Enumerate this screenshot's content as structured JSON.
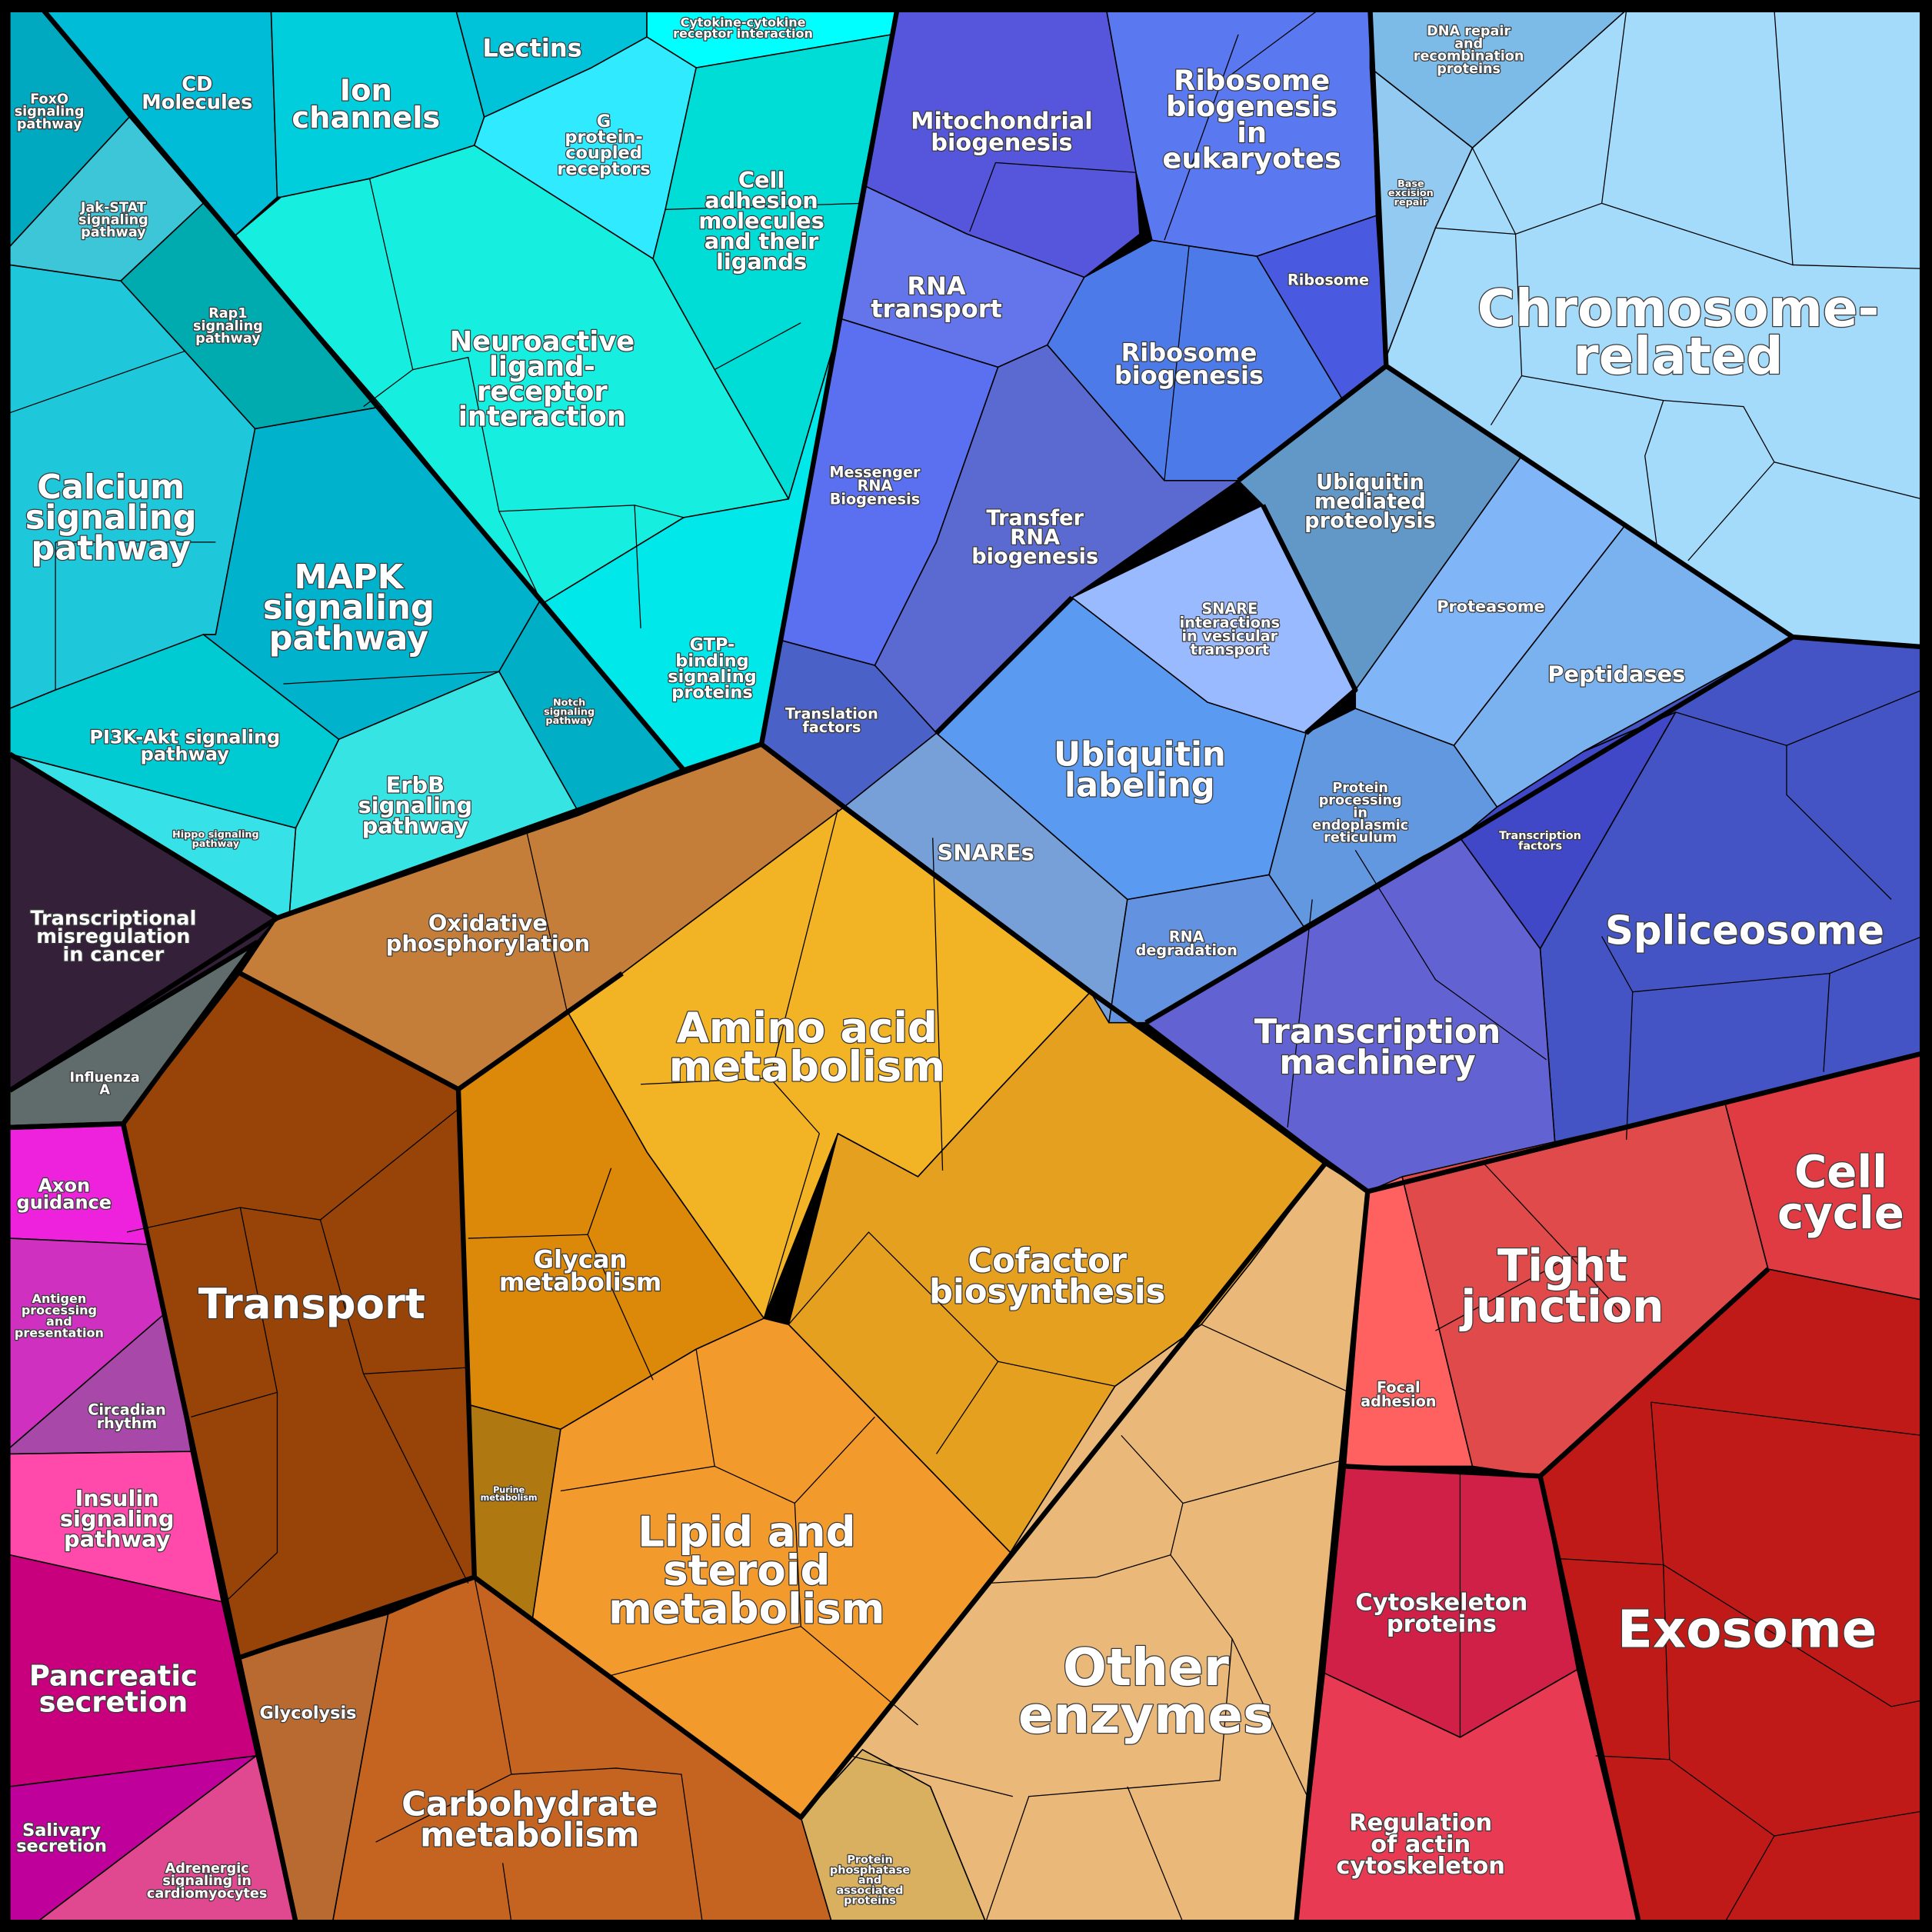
{
  "cells": [
    {
      "id": "foxo",
      "lines": [
        "FoxO",
        "signaling",
        "pathway"
      ],
      "color": "#00a8c0"
    },
    {
      "id": "jakstat",
      "lines": [
        "Jak-STAT",
        "signaling",
        "pathway"
      ],
      "color": "#3cc6d8"
    },
    {
      "id": "rap1",
      "lines": [
        "Rap1",
        "signaling",
        "pathway"
      ],
      "color": "#00abb0"
    },
    {
      "id": "calcium",
      "lines": [
        "Calcium",
        "signaling",
        "pathway"
      ],
      "color": "#1ec8da"
    },
    {
      "id": "mapk",
      "lines": [
        "MAPK",
        "signaling",
        "pathway"
      ],
      "color": "#00b2cc"
    },
    {
      "id": "notch",
      "lines": [
        "Notch",
        "signaling",
        "pathway"
      ],
      "color": "#00aec6"
    },
    {
      "id": "erbb",
      "lines": [
        "ErbB",
        "signaling",
        "pathway"
      ],
      "color": "#36e4e4"
    },
    {
      "id": "pi3k",
      "lines": [
        "PI3K-Akt signaling",
        "pathway"
      ],
      "color": "#00cad2"
    },
    {
      "id": "hippo",
      "lines": [
        "Hippo signaling",
        "pathway"
      ],
      "color": "#36e2e8"
    },
    {
      "id": "cd",
      "lines": [
        "CD",
        "Molecules"
      ],
      "color": "#00bcd6"
    },
    {
      "id": "ion",
      "lines": [
        "Ion",
        "channels"
      ],
      "color": "#00cedc"
    },
    {
      "id": "lectins",
      "lines": [
        "Lectins"
      ],
      "color": "#00c2d8"
    },
    {
      "id": "cytokine",
      "lines": [
        "Cytokine-cytokine",
        "receptor interaction"
      ],
      "color": "#00ffff"
    },
    {
      "id": "gpcr",
      "lines": [
        "G",
        "protein-",
        "coupled",
        "receptors"
      ],
      "color": "#30eaff"
    },
    {
      "id": "adhesion",
      "lines": [
        "Cell",
        "adhesion",
        "molecules",
        "and their",
        "ligands"
      ],
      "color": "#00dcd6"
    },
    {
      "id": "neuro",
      "lines": [
        "Neuroactive",
        "ligand-",
        "receptor",
        "interaction"
      ],
      "color": "#16eee0"
    },
    {
      "id": "gtp",
      "lines": [
        "GTP-",
        "binding",
        "signaling",
        "proteins"
      ],
      "color": "#00e8ea"
    },
    {
      "id": "misreg",
      "lines": [
        "Transcriptional",
        "misregulation",
        "in cancer"
      ],
      "color": "#35203a"
    },
    {
      "id": "influenza",
      "lines": [
        "Influenza",
        "A"
      ],
      "color": "#606c6c"
    },
    {
      "id": "axon",
      "lines": [
        "Axon",
        "guidance"
      ],
      "color": "#ee22dd"
    },
    {
      "id": "antigen",
      "lines": [
        "Antigen",
        "processing",
        "and",
        "presentation"
      ],
      "color": "#d030c0"
    },
    {
      "id": "circadian",
      "lines": [
        "Circadian",
        "rhythm"
      ],
      "color": "#a848a8"
    },
    {
      "id": "insulin",
      "lines": [
        "Insulin",
        "signaling",
        "pathway"
      ],
      "color": "#ff4aac"
    },
    {
      "id": "pancreatic",
      "lines": [
        "Pancreatic",
        "secretion"
      ],
      "color": "#c8007e"
    },
    {
      "id": "salivary",
      "lines": [
        "Salivary",
        "secretion"
      ],
      "color": "#c0009a"
    },
    {
      "id": "adrenergic",
      "lines": [
        "Adrenergic",
        "signaling in",
        "cardiomyocytes"
      ],
      "color": "#e04890"
    },
    {
      "id": "oxphos",
      "lines": [
        "Oxidative",
        "phosphorylation"
      ],
      "color": "#c47e3a"
    },
    {
      "id": "transport",
      "lines": [
        "Transport"
      ],
      "color": "#984408"
    },
    {
      "id": "aminoacid",
      "lines": [
        "Amino acid",
        "metabolism"
      ],
      "color": "#f2b424"
    },
    {
      "id": "glycan",
      "lines": [
        "Glycan",
        "metabolism"
      ],
      "color": "#dc8808"
    },
    {
      "id": "cofactor",
      "lines": [
        "Cofactor",
        "biosynthesis"
      ],
      "color": "#e6a020"
    },
    {
      "id": "purine",
      "lines": [
        "Purine",
        "metabolism"
      ],
      "color": "#b07810"
    },
    {
      "id": "lipid",
      "lines": [
        "Lipid and",
        "steroid",
        "metabolism"
      ],
      "color": "#f29a2c"
    },
    {
      "id": "glycolysis",
      "lines": [
        "Glycolysis"
      ],
      "color": "#b86a30"
    },
    {
      "id": "carbo",
      "lines": [
        "Carbohydrate",
        "metabolism"
      ],
      "color": "#c46420"
    },
    {
      "id": "other",
      "lines": [
        "Other",
        "enzymes"
      ],
      "color": "#eab878"
    },
    {
      "id": "phosphatase",
      "lines": [
        "Protein",
        "phosphatase",
        "and",
        "associated",
        "proteins"
      ],
      "color": "#d8b060"
    },
    {
      "id": "mito",
      "lines": [
        "Mitochondrial",
        "biogenesis"
      ],
      "color": "#5656dc"
    },
    {
      "id": "ribeuk",
      "lines": [
        "Ribosome",
        "biogenesis",
        "in",
        "eukaryotes"
      ],
      "color": "#5a78f0"
    },
    {
      "id": "ribosome",
      "lines": [
        "Ribosome"
      ],
      "color": "#4a5ae0"
    },
    {
      "id": "rnatransport",
      "lines": [
        "RNA",
        "transport"
      ],
      "color": "#6474ea"
    },
    {
      "id": "ribbio",
      "lines": [
        "Ribosome",
        "biogenesis"
      ],
      "color": "#4c7ae8"
    },
    {
      "id": "mrna",
      "lines": [
        "Messenger",
        "RNA",
        "Biogenesis"
      ],
      "color": "#5a70f0"
    },
    {
      "id": "trna",
      "lines": [
        "Transfer",
        "RNA",
        "biogenesis"
      ],
      "color": "#5a6ad0"
    },
    {
      "id": "translation",
      "lines": [
        "Translation",
        "factors"
      ],
      "color": "#4a62c8"
    },
    {
      "id": "ubmed",
      "lines": [
        "Ubiquitin",
        "mediated",
        "proteolysis"
      ],
      "color": "#6298c8"
    },
    {
      "id": "snareint",
      "lines": [
        "SNARE",
        "interactions",
        "in vesicular",
        "transport"
      ],
      "color": "#9abaff"
    },
    {
      "id": "proteasome",
      "lines": [
        "Proteasome"
      ],
      "color": "#80b6f8"
    },
    {
      "id": "peptidases",
      "lines": [
        "Peptidases"
      ],
      "color": "#7ab2f0"
    },
    {
      "id": "ublabel",
      "lines": [
        "Ubiquitin",
        "labeling"
      ],
      "color": "#5a9af0"
    },
    {
      "id": "snares",
      "lines": [
        "SNAREs"
      ],
      "color": "#78a0d8"
    },
    {
      "id": "er",
      "lines": [
        "Protein",
        "processing",
        "in",
        "endoplasmic",
        "reticulum"
      ],
      "color": "#6298e0"
    },
    {
      "id": "rnadeg",
      "lines": [
        "RNA",
        "degradation"
      ],
      "color": "#6292e0"
    },
    {
      "id": "tf",
      "lines": [
        "Transcription",
        "factors"
      ],
      "color": "#4048c8"
    },
    {
      "id": "spliceosome",
      "lines": [
        "Spliceosome"
      ],
      "color": "#4454c4"
    },
    {
      "id": "txmach",
      "lines": [
        "Transcription",
        "machinery"
      ],
      "color": "#6262d2"
    },
    {
      "id": "chromosome",
      "lines": [
        "Chromosome-",
        "related"
      ],
      "color": "#a4dafa"
    },
    {
      "id": "dnarepair",
      "lines": [
        "DNA repair",
        "and",
        "recombination",
        "proteins"
      ],
      "color": "#7cbae8"
    },
    {
      "id": "ber",
      "lines": [
        "Base",
        "excision",
        "repair"
      ],
      "color": "#92caf2"
    },
    {
      "id": "focal",
      "lines": [
        "Focal",
        "adhesion"
      ],
      "color": "#ff6060"
    },
    {
      "id": "tight",
      "lines": [
        "Tight",
        "junction"
      ],
      "color": "#e04a4a"
    },
    {
      "id": "cellcycle",
      "lines": [
        "Cell",
        "cycle"
      ],
      "color": "#e03a42"
    },
    {
      "id": "cytoskel",
      "lines": [
        "Cytoskeleton",
        "proteins"
      ],
      "color": "#d02048"
    },
    {
      "id": "actin",
      "lines": [
        "Regulation",
        "of actin",
        "cytoskeleton"
      ],
      "color": "#e83a52"
    },
    {
      "id": "exosome",
      "lines": [
        "Exosome"
      ],
      "color": "#c01a18"
    }
  ]
}
